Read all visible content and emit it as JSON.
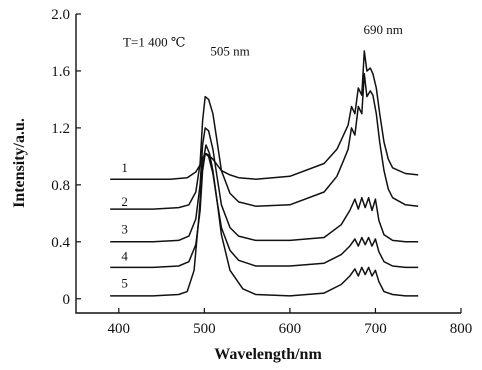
{
  "chart_data": {
    "type": "line",
    "xlabel": "Wavelength/nm",
    "ylabel": "Intensity/a.u.",
    "xlim": [
      350,
      800
    ],
    "ylim": [
      -0.1,
      2.0
    ],
    "xticks": [
      400,
      500,
      600,
      700,
      800
    ],
    "yticks": [
      0,
      0.4,
      0.8,
      1.2,
      1.6,
      2.0
    ],
    "xtick_labels": [
      "400",
      "500",
      "600",
      "700",
      "800"
    ],
    "ytick_labels": [
      "0",
      "0.4",
      "0.8",
      "1.2",
      "1.6",
      "2.0"
    ],
    "grid": false,
    "annotations": [
      {
        "text": "T=1 400 ℃",
        "x": 405,
        "y": 1.77
      },
      {
        "text": "505 nm",
        "x": 507,
        "y": 1.71
      },
      {
        "text": "690 nm",
        "x": 686,
        "y": 1.86
      }
    ],
    "series": [
      {
        "name": "1",
        "label_x": 403,
        "label_y": 0.89,
        "x": [
          390,
          430,
          460,
          480,
          490,
          495,
          498,
          502,
          505,
          510,
          515,
          520,
          530,
          540,
          560,
          600,
          640,
          655,
          662,
          668,
          672,
          676,
          680,
          684,
          687,
          690,
          694,
          697,
          701,
          705,
          710,
          715,
          720,
          735,
          750
        ],
        "y": [
          0.84,
          0.84,
          0.84,
          0.85,
          0.89,
          0.94,
          0.99,
          1.02,
          1.01,
          0.98,
          0.94,
          0.9,
          0.87,
          0.85,
          0.84,
          0.86,
          0.95,
          1.05,
          1.14,
          1.22,
          1.35,
          1.3,
          1.48,
          1.43,
          1.74,
          1.6,
          1.62,
          1.58,
          1.48,
          1.3,
          1.1,
          0.98,
          0.92,
          0.88,
          0.87
        ]
      },
      {
        "name": "2",
        "label_x": 403,
        "label_y": 0.65,
        "x": [
          390,
          440,
          470,
          482,
          490,
          495,
          498,
          501,
          505,
          510,
          515,
          520,
          530,
          540,
          560,
          600,
          640,
          655,
          662,
          668,
          672,
          676,
          680,
          684,
          687,
          690,
          694,
          697,
          701,
          705,
          710,
          715,
          720,
          735,
          750
        ],
        "y": [
          0.63,
          0.63,
          0.64,
          0.66,
          0.75,
          0.95,
          1.25,
          1.42,
          1.4,
          1.3,
          1.1,
          0.9,
          0.74,
          0.68,
          0.65,
          0.66,
          0.75,
          0.86,
          0.96,
          1.05,
          1.2,
          1.15,
          1.35,
          1.3,
          1.58,
          1.42,
          1.46,
          1.43,
          1.3,
          1.1,
          0.9,
          0.77,
          0.71,
          0.66,
          0.65
        ]
      },
      {
        "name": "3",
        "label_x": 403,
        "label_y": 0.46,
        "x": [
          390,
          440,
          470,
          482,
          490,
          495,
          498,
          501,
          505,
          510,
          515,
          520,
          530,
          540,
          560,
          600,
          640,
          660,
          670,
          676,
          680,
          684,
          688,
          692,
          696,
          700,
          704,
          710,
          720,
          735,
          750
        ],
        "y": [
          0.4,
          0.4,
          0.41,
          0.44,
          0.56,
          0.8,
          1.08,
          1.2,
          1.18,
          1.05,
          0.85,
          0.66,
          0.5,
          0.44,
          0.41,
          0.41,
          0.43,
          0.52,
          0.62,
          0.7,
          0.63,
          0.71,
          0.64,
          0.71,
          0.62,
          0.7,
          0.55,
          0.45,
          0.41,
          0.4,
          0.4
        ]
      },
      {
        "name": "4",
        "label_x": 403,
        "label_y": 0.27,
        "x": [
          390,
          440,
          470,
          482,
          490,
          495,
          498,
          501,
          505,
          510,
          515,
          520,
          530,
          540,
          560,
          600,
          640,
          660,
          670,
          676,
          680,
          684,
          688,
          692,
          696,
          700,
          704,
          710,
          720,
          735,
          750
        ],
        "y": [
          0.22,
          0.22,
          0.23,
          0.26,
          0.38,
          0.62,
          0.9,
          1.02,
          1.0,
          0.88,
          0.68,
          0.5,
          0.34,
          0.27,
          0.23,
          0.23,
          0.25,
          0.31,
          0.37,
          0.42,
          0.37,
          0.43,
          0.38,
          0.43,
          0.37,
          0.42,
          0.33,
          0.26,
          0.23,
          0.22,
          0.22
        ]
      },
      {
        "name": "5",
        "label_x": 403,
        "label_y": 0.08,
        "x": [
          390,
          440,
          470,
          480,
          488,
          494,
          498,
          502,
          506,
          510,
          515,
          520,
          530,
          545,
          560,
          600,
          640,
          660,
          670,
          676,
          680,
          684,
          688,
          692,
          696,
          700,
          704,
          710,
          720,
          735,
          750
        ],
        "y": [
          0.02,
          0.02,
          0.03,
          0.05,
          0.2,
          0.6,
          0.95,
          1.08,
          1.02,
          0.9,
          0.68,
          0.45,
          0.2,
          0.07,
          0.03,
          0.02,
          0.04,
          0.1,
          0.16,
          0.21,
          0.16,
          0.22,
          0.17,
          0.22,
          0.16,
          0.2,
          0.12,
          0.05,
          0.03,
          0.02,
          0.02
        ]
      }
    ]
  }
}
